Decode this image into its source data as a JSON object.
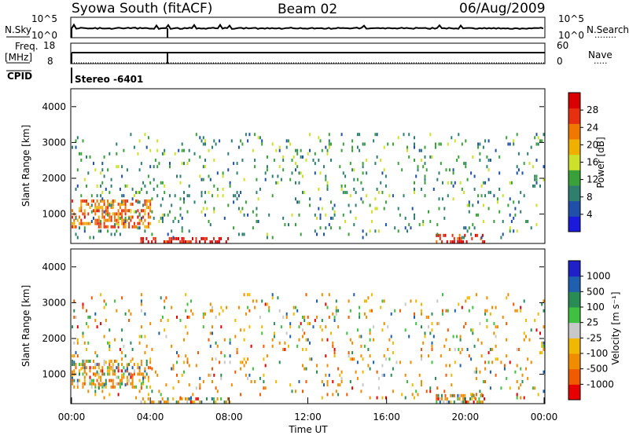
{
  "header": {
    "title": "Syowa South (fitACF)",
    "beam": "Beam 02",
    "date": "06/Aug/2009"
  },
  "status_panels": {
    "nsky": {
      "label": "N.Sky",
      "ticks": [
        "10^5",
        "10^0"
      ]
    },
    "nsearch": {
      "label": "N.Search",
      "ticks": [
        "10^5",
        "10^0"
      ],
      "dots": "........"
    },
    "freq": {
      "label_line1": "Freq.",
      "label_line2": "[MHz]",
      "ticks": [
        "18",
        "8"
      ]
    },
    "nave": {
      "label": "Nave",
      "ticks": [
        "60",
        "0"
      ],
      "dots": "....."
    },
    "cpid": {
      "label": "CPID",
      "value": "Stereo -6401"
    }
  },
  "colors": {
    "power_scale": [
      "#1a1adc",
      "#1f4fa8",
      "#2f7f6f",
      "#3aa03a",
      "#cde02a",
      "#f0b000",
      "#f07800",
      "#e83010",
      "#d80000"
    ],
    "velocity_scale": [
      "#e80000",
      "#f05a00",
      "#f08c00",
      "#f0b800",
      "#c8c8c8",
      "#40c040",
      "#2a8c55",
      "#1f5fb0",
      "#2020c8"
    ]
  },
  "chart_data": [
    {
      "type": "heatmap",
      "name": "power",
      "xlabel": "Time UT",
      "ylabel": "Slant Range [km]",
      "ylim": [
        180,
        4500
      ],
      "xlim": [
        0,
        24
      ],
      "y_ticks": [
        "1000",
        "2000",
        "3000",
        "4000"
      ],
      "y_tick_values": [
        1000,
        2000,
        3000,
        4000
      ],
      "colorbar": {
        "label": "Power [dB]",
        "tick_labels": [
          "4",
          "8",
          "12",
          "16",
          "20",
          "24",
          "28"
        ],
        "range": [
          0,
          30
        ]
      },
      "features": [
        {
          "description": "Strong near-range band",
          "time_start": "03:30",
          "time_end": "08:00",
          "range_km": [
            180,
            340
          ],
          "value_db": 28
        },
        {
          "description": "Patchy echoes",
          "time_start": "00:00",
          "time_end": "04:00",
          "range_km": [
            600,
            1400
          ],
          "value_db": 22
        },
        {
          "description": "Near-range patch",
          "time_start": "18:30",
          "time_end": "21:00",
          "range_km": [
            180,
            400
          ],
          "value_db": 26
        },
        {
          "description": "Scattered echoes",
          "time_start": "00:00",
          "time_end": "24:00",
          "range_km": [
            300,
            3200
          ],
          "value_db": 10
        }
      ]
    },
    {
      "type": "heatmap",
      "name": "velocity",
      "xlabel": "Time UT",
      "ylabel": "Slant Range [km]",
      "ylim": [
        180,
        4500
      ],
      "xlim": [
        0,
        24
      ],
      "x_ticks": [
        "00:00",
        "04:00",
        "08:00",
        "12:00",
        "16:00",
        "20:00",
        "00:00"
      ],
      "x_tick_values": [
        0,
        4,
        8,
        12,
        16,
        20,
        24
      ],
      "y_ticks": [
        "1000",
        "2000",
        "3000",
        "4000"
      ],
      "y_tick_values": [
        1000,
        2000,
        3000,
        4000
      ],
      "colorbar": {
        "label": "Velocity [m s⁻¹]",
        "tick_labels": [
          "-1000",
          "-500",
          "-100",
          "-25",
          "25",
          "100",
          "500",
          "1000"
        ]
      }
    }
  ]
}
